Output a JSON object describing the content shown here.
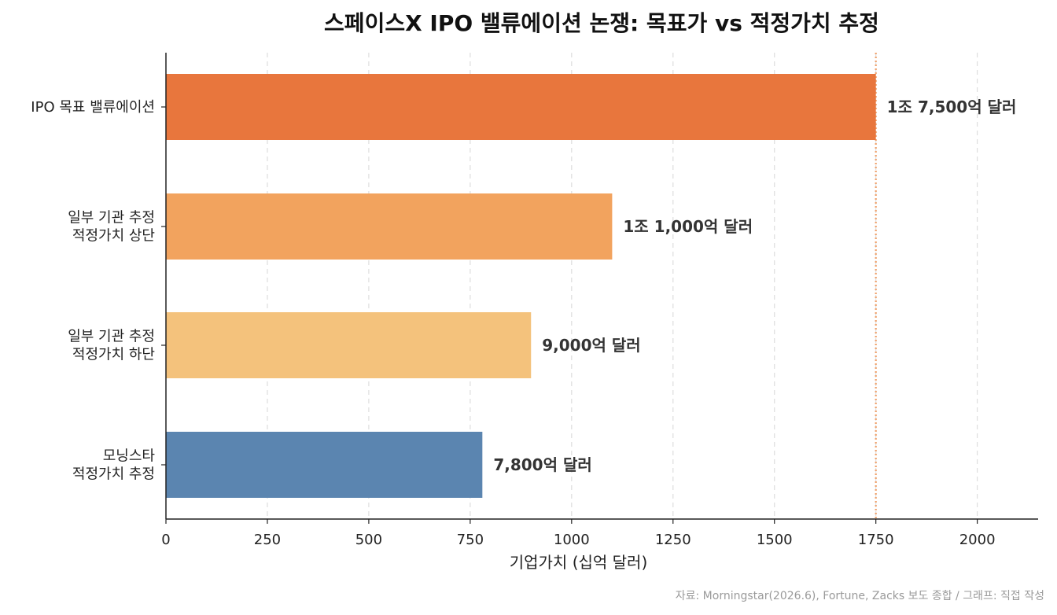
{
  "chart_data": {
    "type": "bar",
    "orientation": "horizontal",
    "title": "스페이스X IPO 밸류에이션 논쟁: 목표가 vs 적정가치 추정",
    "xlabel": "기업가치 (십억 달러)",
    "ylabel": "",
    "xlim": [
      0,
      2150
    ],
    "xticks": [
      0,
      250,
      500,
      750,
      1000,
      1250,
      1500,
      1750,
      2000
    ],
    "grid": "vertical dashed",
    "categories": [
      [
        "IPO 목표 밸류에이션"
      ],
      [
        "일부 기관 추정",
        "적정가치 상단"
      ],
      [
        "일부 기관 추정",
        "적정가치 하단"
      ],
      [
        "모닝스타",
        "적정가치 추정"
      ]
    ],
    "values": [
      1750,
      1100,
      900,
      780
    ],
    "data_labels": [
      "1조 7,500억 달러",
      "1조 1,000억 달러",
      "9,000억 달러",
      "7,800억 달러"
    ],
    "colors": [
      "#E8763D",
      "#F2A35E",
      "#F4C27C",
      "#5B85B0"
    ],
    "reference_line": {
      "value": 1750,
      "style": "dotted",
      "color": "#EFA06A"
    }
  },
  "source_note": "자료: Morningstar(2026.6), Fortune, Zacks 보도 종합 / 그래프: 직접 작성"
}
